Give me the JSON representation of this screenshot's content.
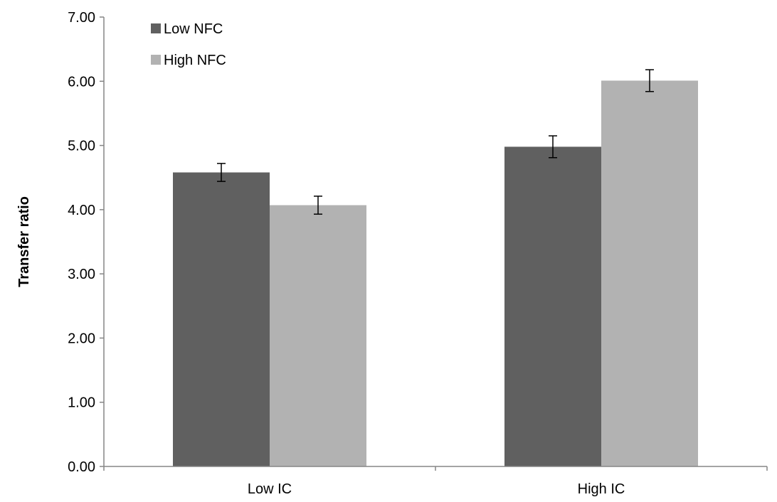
{
  "chart_data": {
    "type": "bar",
    "title": "",
    "xlabel": "",
    "ylabel": "Transfer ratio",
    "categories": [
      "Low IC",
      "High IC"
    ],
    "series": [
      {
        "name": "Low NFC",
        "color": "#606060",
        "values": [
          4.58,
          4.98
        ],
        "errors": [
          0.14,
          0.17
        ]
      },
      {
        "name": "High NFC",
        "color": "#b2b2b2",
        "values": [
          4.07,
          6.01
        ],
        "errors": [
          0.14,
          0.17
        ]
      }
    ],
    "ylim": [
      0,
      7
    ],
    "yticks": [
      "0.00",
      "1.00",
      "2.00",
      "3.00",
      "4.00",
      "5.00",
      "6.00",
      "7.00"
    ],
    "grid": false,
    "legend_position": "top-left"
  }
}
